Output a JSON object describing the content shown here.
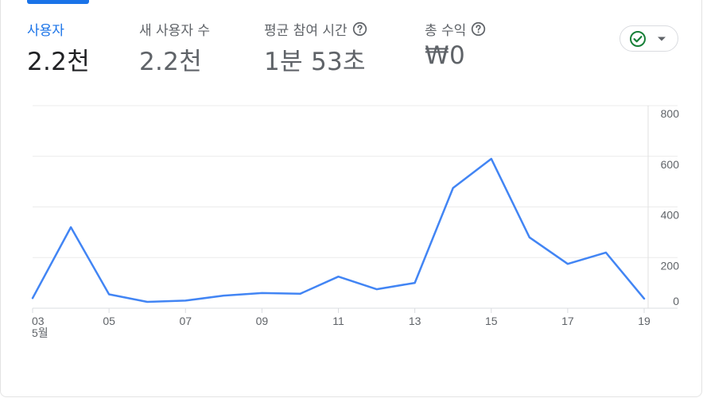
{
  "metrics": [
    {
      "label": "사용자",
      "value": "2.2천",
      "active": true,
      "help": false
    },
    {
      "label": "새 사용자 수",
      "value": "2.2천",
      "active": false,
      "help": false
    },
    {
      "label": "평균 참여 시간",
      "value": "1분 53초",
      "active": false,
      "help": true
    },
    {
      "label": "총 수익",
      "value": "₩0",
      "active": false,
      "help": true
    }
  ],
  "status_button": {
    "icon": "check-circle-icon",
    "dropdown_icon": "caret-down-icon"
  },
  "colors": {
    "accent": "#1a73e8",
    "line": "#4285f4",
    "status_green": "#188038",
    "grid": "#ebebeb",
    "text_secondary": "#5f6368"
  },
  "chart_data": {
    "type": "line",
    "x": [
      3,
      4,
      5,
      6,
      7,
      8,
      9,
      10,
      11,
      12,
      13,
      14,
      15,
      16,
      17,
      18,
      19
    ],
    "series": [
      {
        "values": [
          40,
          320,
          55,
          25,
          30,
          50,
          60,
          57,
          125,
          75,
          100,
          475,
          590,
          280,
          175,
          220,
          38
        ]
      }
    ],
    "x_tick_labels": [
      "03",
      "05",
      "07",
      "09",
      "11",
      "13",
      "15",
      "17",
      "19"
    ],
    "x_tick_values": [
      3,
      5,
      7,
      9,
      11,
      13,
      15,
      17,
      19
    ],
    "x_sub_label": "5월",
    "y_ticks": [
      0,
      200,
      400,
      600,
      800
    ],
    "ylim": [
      0,
      800
    ],
    "xlim": [
      3,
      19
    ],
    "grid": true,
    "y_axis_side": "right"
  }
}
